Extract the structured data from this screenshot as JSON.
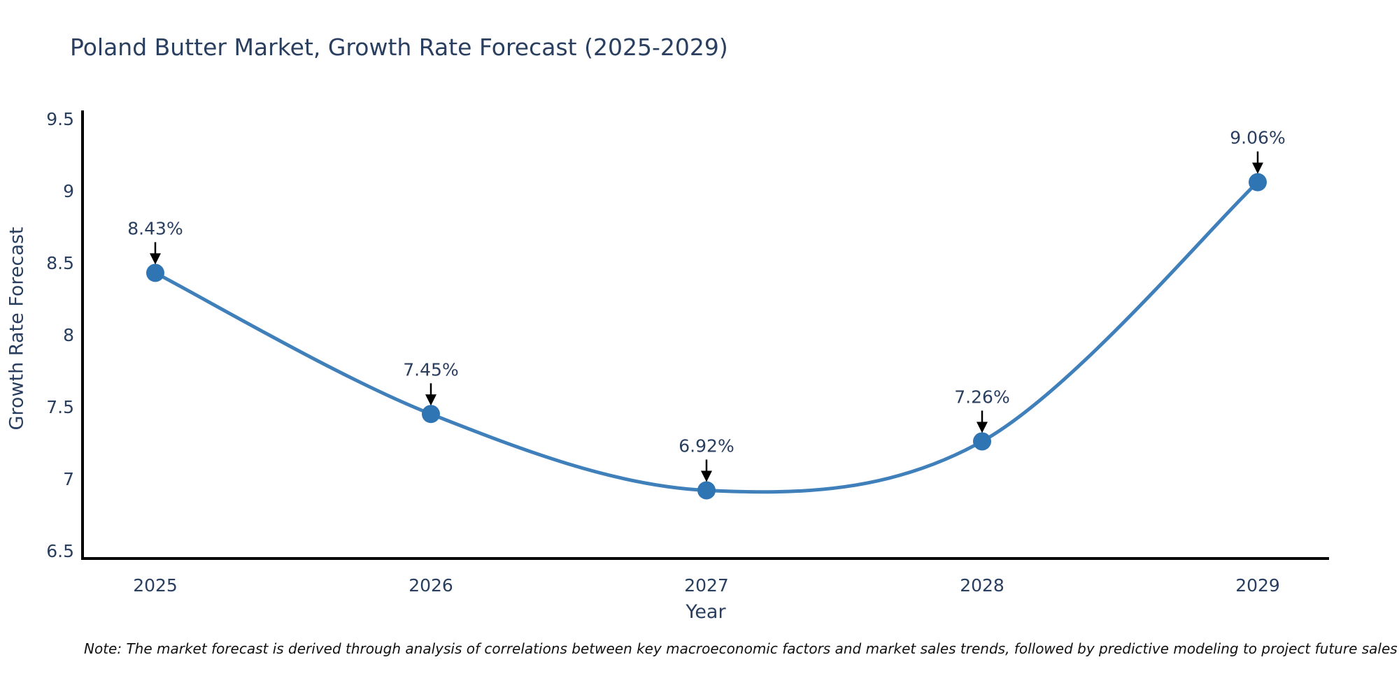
{
  "note": "Note: The market forecast is derived through analysis of correlations between key macroeconomic factors and market sales trends, followed by predictive modeling to project future sales",
  "chart_data": {
    "type": "line",
    "title": "Poland Butter Market, Growth Rate Forecast (2025-2029)",
    "xlabel": "Year",
    "ylabel": "Growth Rate Forecast",
    "x": [
      2025,
      2026,
      2027,
      2028,
      2029
    ],
    "series": [
      {
        "name": "Growth Rate Forecast",
        "values": [
          8.43,
          7.45,
          6.92,
          7.26,
          9.06
        ]
      }
    ],
    "point_labels": [
      "8.43%",
      "7.45%",
      "6.92%",
      "7.26%",
      "9.06%"
    ],
    "yticks": [
      6.5,
      7,
      7.5,
      8,
      8.5,
      9,
      9.5
    ],
    "ylim": [
      6.44,
      9.56
    ],
    "line_shape": "spline",
    "grid": false,
    "legend": "none",
    "colors": {
      "line": "#3f7fba",
      "marker": "#2f74b3",
      "axis": "#000000",
      "tick_text": "#2a3f5f",
      "annotation_text": "#2a3f5f",
      "annotation_arrow": "#000000",
      "background": "#ffffff"
    }
  }
}
